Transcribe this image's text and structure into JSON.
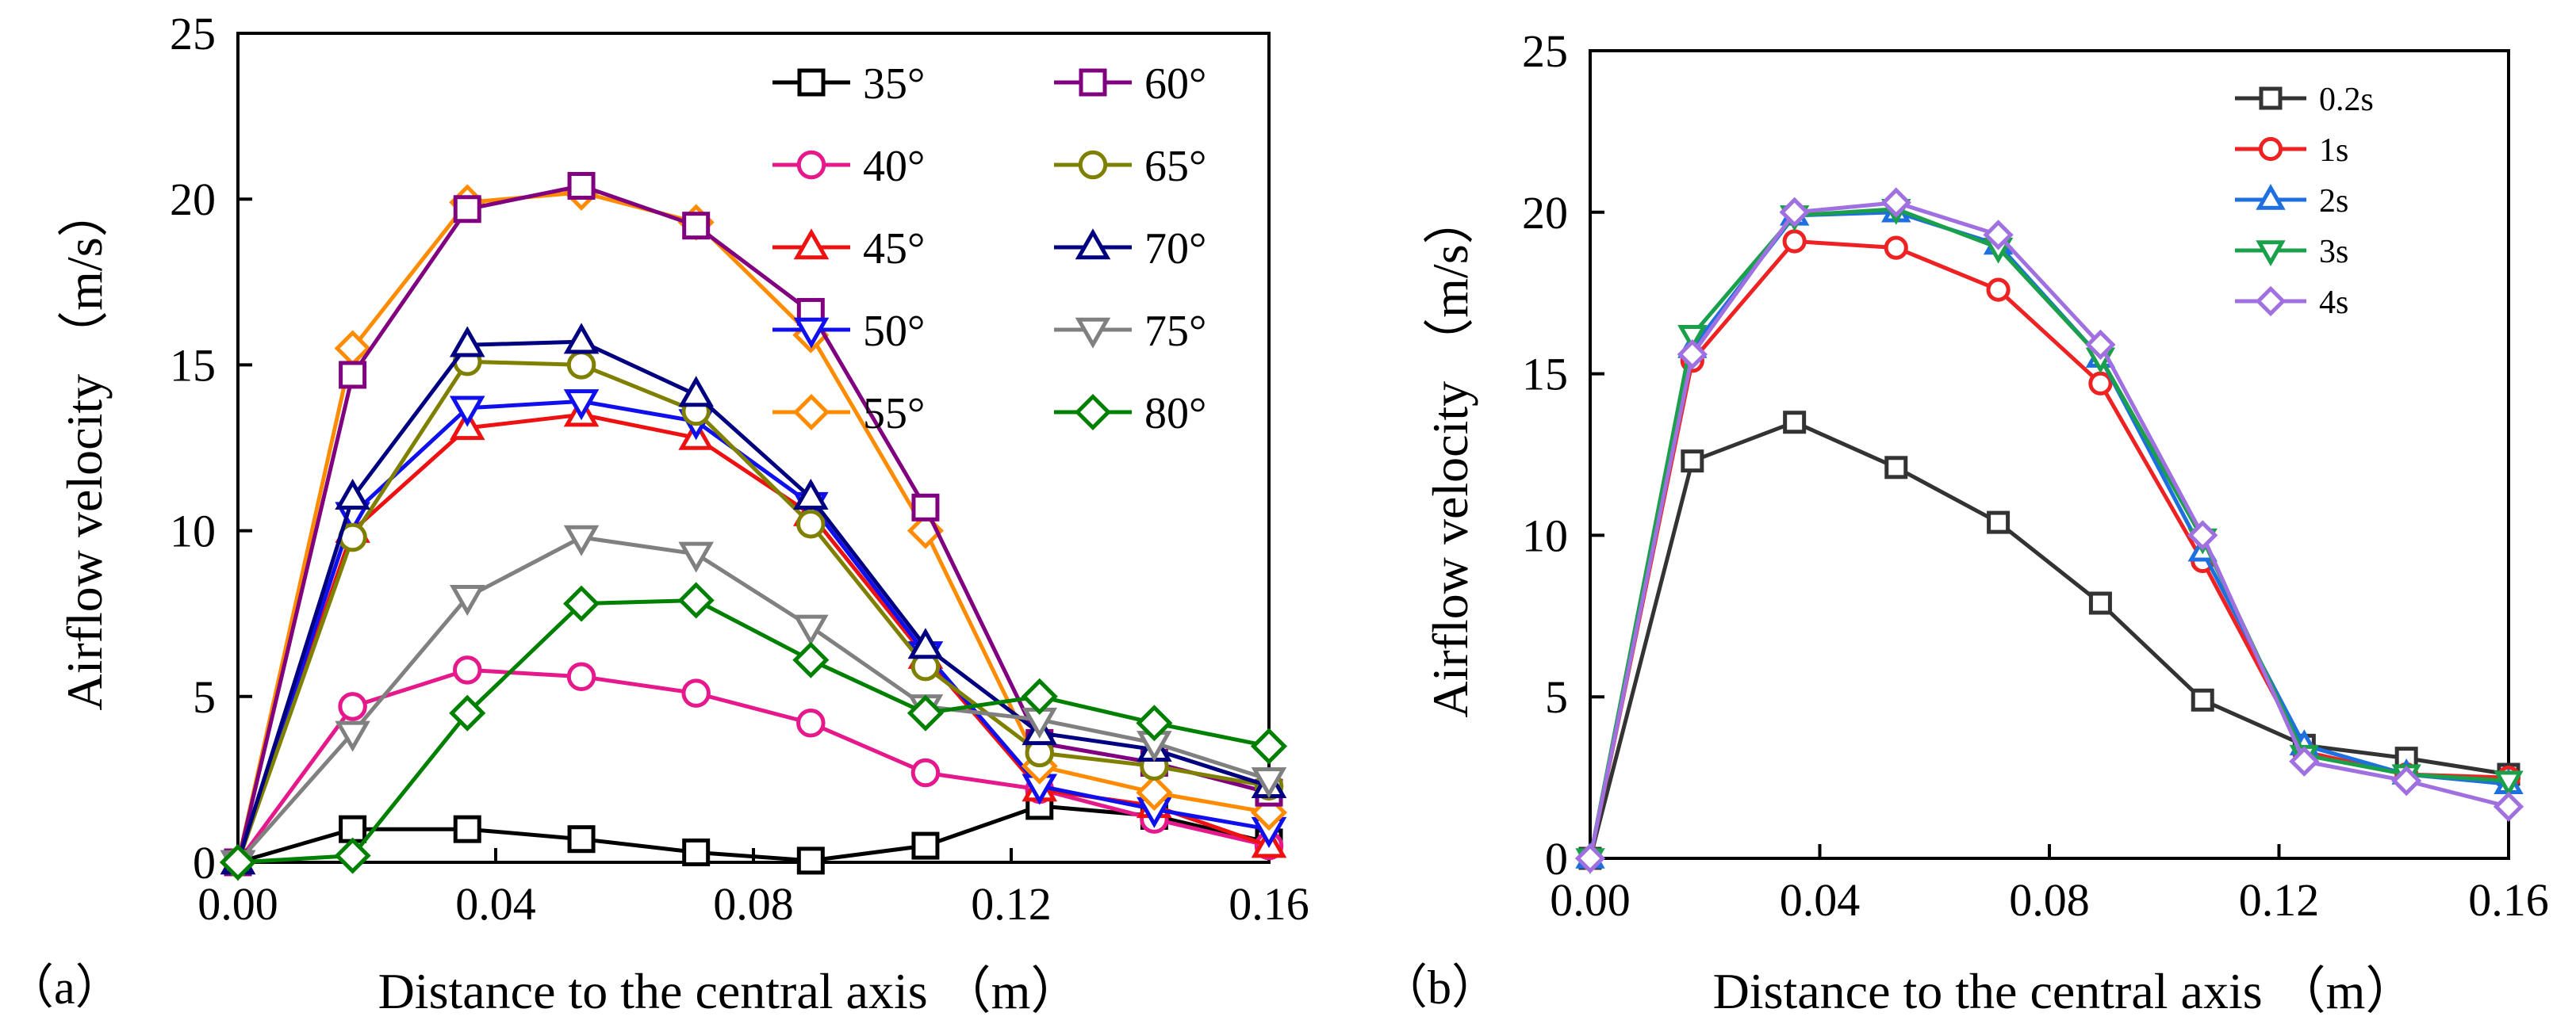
{
  "chart_data": [
    {
      "type": "line",
      "panel_label": "（a）",
      "xlabel": "Distance to the central axis （m）",
      "ylabel": "Airflow velocity （m/s）",
      "xlim": [
        0.0,
        0.16
      ],
      "ylim": [
        0,
        25
      ],
      "x_ticks": [
        "0.00",
        "0.04",
        "0.08",
        "0.12",
        "0.16"
      ],
      "y_ticks": [
        "0",
        "5",
        "10",
        "15",
        "20",
        "25"
      ],
      "legend_position": "top-right",
      "grid": false,
      "x": [
        0.0,
        0.0178,
        0.0356,
        0.0533,
        0.0711,
        0.0889,
        0.1067,
        0.1244,
        0.1422,
        0.16
      ],
      "series": [
        {
          "name": "35°",
          "color": "#000000",
          "marker": "square",
          "values": [
            0,
            1.0,
            1.0,
            0.7,
            0.3,
            0.05,
            0.5,
            1.7,
            1.4,
            0.6
          ]
        },
        {
          "name": "40°",
          "color": "#e6198c",
          "marker": "circle",
          "values": [
            0,
            4.7,
            5.8,
            5.6,
            5.1,
            4.2,
            2.7,
            2.2,
            1.3,
            0.5
          ]
        },
        {
          "name": "45°",
          "color": "#ee1111",
          "marker": "triangle-up",
          "values": [
            0,
            10.0,
            13.1,
            13.5,
            12.8,
            10.5,
            6.2,
            2.2,
            1.7,
            0.5
          ]
        },
        {
          "name": "50°",
          "color": "#1010ee",
          "marker": "triangle-down",
          "values": [
            0,
            10.5,
            13.7,
            13.9,
            13.3,
            10.8,
            6.3,
            2.3,
            1.6,
            1.0
          ]
        },
        {
          "name": "55°",
          "color": "#ff8c00",
          "marker": "diamond",
          "values": [
            0,
            15.5,
            19.9,
            20.2,
            19.3,
            15.9,
            10.0,
            2.9,
            2.1,
            1.5
          ]
        },
        {
          "name": "60°",
          "color": "#800080",
          "marker": "square",
          "values": [
            0,
            14.7,
            19.7,
            20.4,
            19.2,
            16.6,
            10.7,
            3.6,
            3.0,
            2.1
          ]
        },
        {
          "name": "65°",
          "color": "#808000",
          "marker": "circle",
          "values": [
            0,
            9.8,
            15.1,
            15.0,
            13.6,
            10.2,
            5.9,
            3.3,
            2.9,
            2.3
          ]
        },
        {
          "name": "70°",
          "color": "#000080",
          "marker": "triangle-up",
          "values": [
            0,
            11.0,
            15.6,
            15.7,
            14.1,
            11.0,
            6.5,
            3.9,
            3.4,
            2.3
          ]
        },
        {
          "name": "75°",
          "color": "#808080",
          "marker": "triangle-down",
          "values": [
            0,
            3.9,
            8.0,
            9.8,
            9.3,
            7.1,
            4.7,
            4.3,
            3.6,
            2.5
          ]
        },
        {
          "name": "80°",
          "color": "#008000",
          "marker": "diamond",
          "values": [
            0,
            0.2,
            4.5,
            7.8,
            7.9,
            6.1,
            4.5,
            5.0,
            4.2,
            3.5
          ]
        }
      ]
    },
    {
      "type": "line",
      "panel_label": "（b）",
      "xlabel": "Distance to the central axis （m）",
      "ylabel": "Airflow velocity （m/s）",
      "xlim": [
        0.0,
        0.16
      ],
      "ylim": [
        0,
        25
      ],
      "x_ticks": [
        "0.00",
        "0.04",
        "0.08",
        "0.12",
        "0.16"
      ],
      "y_ticks": [
        "0",
        "5",
        "10",
        "15",
        "20",
        "25"
      ],
      "legend_position": "top-right",
      "grid": false,
      "x": [
        0.0,
        0.0178,
        0.0356,
        0.0533,
        0.0711,
        0.0889,
        0.1067,
        0.1244,
        0.1422,
        0.16
      ],
      "series": [
        {
          "name": "0.2s",
          "color": "#333333",
          "marker": "square",
          "values": [
            0,
            12.3,
            13.5,
            12.1,
            10.4,
            7.9,
            4.9,
            3.5,
            3.1,
            2.6
          ]
        },
        {
          "name": "1s",
          "color": "#ee2222",
          "marker": "circle",
          "values": [
            0,
            15.4,
            19.1,
            18.9,
            17.6,
            14.7,
            9.2,
            3.3,
            2.6,
            2.5
          ]
        },
        {
          "name": "2s",
          "color": "#1e6fe0",
          "marker": "triangle-up",
          "values": [
            0,
            15.8,
            19.9,
            20.0,
            19.0,
            15.5,
            9.5,
            3.5,
            2.6,
            2.3
          ]
        },
        {
          "name": "3s",
          "color": "#1aa04a",
          "marker": "triangle-down",
          "values": [
            0,
            16.2,
            19.9,
            20.1,
            18.9,
            15.5,
            9.9,
            3.2,
            2.6,
            2.4
          ]
        },
        {
          "name": "4s",
          "color": "#a070e0",
          "marker": "diamond",
          "values": [
            0,
            15.6,
            20.0,
            20.3,
            19.3,
            15.9,
            10.0,
            3.0,
            2.4,
            1.6
          ]
        }
      ]
    }
  ]
}
